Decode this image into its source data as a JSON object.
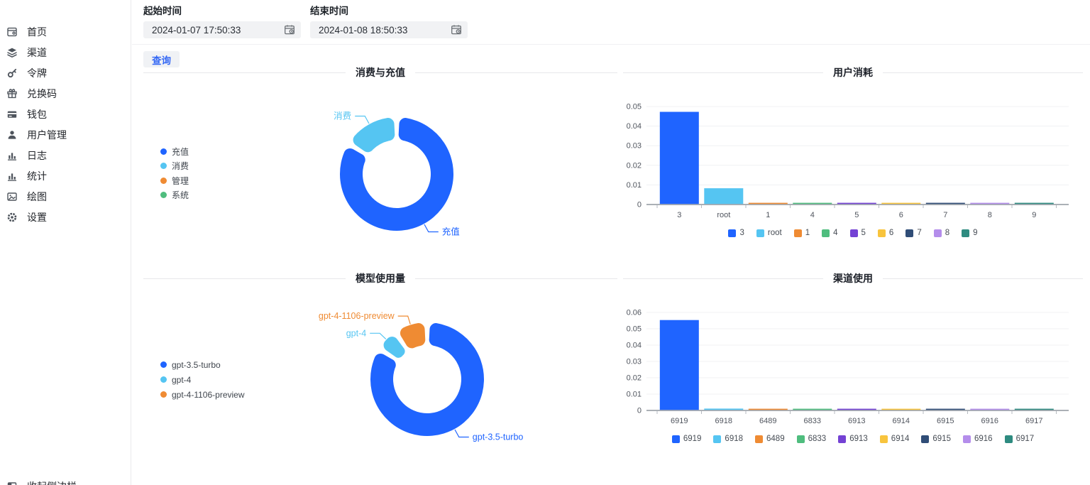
{
  "sidebar": {
    "items": [
      {
        "id": "home",
        "label": "首页",
        "icon": "home-icon"
      },
      {
        "id": "channels",
        "label": "渠道",
        "icon": "layers-icon"
      },
      {
        "id": "tokens",
        "label": "令牌",
        "icon": "key-icon"
      },
      {
        "id": "redemptions",
        "label": "兑换码",
        "icon": "gift-icon"
      },
      {
        "id": "wallet",
        "label": "钱包",
        "icon": "credit-card-icon"
      },
      {
        "id": "users",
        "label": "用户管理",
        "icon": "user-icon"
      },
      {
        "id": "logs",
        "label": "日志",
        "icon": "bar-chart-icon"
      },
      {
        "id": "stats",
        "label": "统计",
        "icon": "bar-chart-icon"
      },
      {
        "id": "drawing",
        "label": "绘图",
        "icon": "image-icon"
      },
      {
        "id": "settings",
        "label": "设置",
        "icon": "gear-icon"
      }
    ],
    "collapse_label": "收起侧边栏"
  },
  "filters": {
    "start": {
      "label": "起始时间",
      "value": "2024-01-07 17:50:33"
    },
    "end": {
      "label": "结束时间",
      "value": "2024-01-08 18:50:33"
    },
    "query_label": "查询"
  },
  "palette": [
    "#1f64ff",
    "#55c5f2",
    "#ef8b33",
    "#4fbd7e",
    "#7442d4",
    "#f8c43d",
    "#304d77",
    "#b48deb",
    "#2e8b80"
  ],
  "chart_data": [
    {
      "type": "pie",
      "title": "消费与充值",
      "labels": [
        "充值",
        "消费",
        "管理",
        "系统"
      ],
      "values": [
        0.84,
        0.16,
        0,
        0
      ],
      "colors": [
        "#1f64ff",
        "#55c5f2",
        "#ef8b33",
        "#4fbd7e"
      ],
      "legend_position": "left",
      "donut": true
    },
    {
      "type": "bar",
      "title": "用户消耗",
      "categories": [
        "3",
        "root",
        "1",
        "4",
        "5",
        "6",
        "7",
        "8",
        "9"
      ],
      "values": [
        0.047,
        0.008,
        0.0004,
        0.0004,
        0.0004,
        0.0004,
        0.0004,
        0.0004,
        0.0004
      ],
      "colors": [
        "#1f64ff",
        "#55c5f2",
        "#ef8b33",
        "#4fbd7e",
        "#7442d4",
        "#f8c43d",
        "#304d77",
        "#b48deb",
        "#2e8b80"
      ],
      "yticks": [
        0,
        0.01,
        0.02,
        0.03,
        0.04,
        0.05
      ],
      "ylim": [
        0,
        0.055
      ],
      "grid": true,
      "legend_position": "bottom"
    },
    {
      "type": "pie",
      "title": "模型使用量",
      "labels": [
        "gpt-3.5-turbo",
        "gpt-4",
        "gpt-4-1106-preview"
      ],
      "values": [
        0.84,
        0.065,
        0.095
      ],
      "colors": [
        "#1f64ff",
        "#55c5f2",
        "#ef8b33"
      ],
      "legend_position": "left",
      "donut": true
    },
    {
      "type": "bar",
      "title": "渠道使用",
      "categories": [
        "6919",
        "6918",
        "6489",
        "6833",
        "6913",
        "6914",
        "6915",
        "6916",
        "6917"
      ],
      "values": [
        0.055,
        0.0008,
        0.0003,
        0.0003,
        0.0003,
        0.0003,
        0.0003,
        0.0003,
        0.0003
      ],
      "colors": [
        "#1f64ff",
        "#55c5f2",
        "#ef8b33",
        "#4fbd7e",
        "#7442d4",
        "#f8c43d",
        "#304d77",
        "#b48deb",
        "#2e8b80"
      ],
      "yticks": [
        0,
        0.01,
        0.02,
        0.03,
        0.04,
        0.05,
        0.06
      ],
      "ylim": [
        0,
        0.06
      ],
      "grid": true,
      "legend_position": "bottom"
    }
  ]
}
